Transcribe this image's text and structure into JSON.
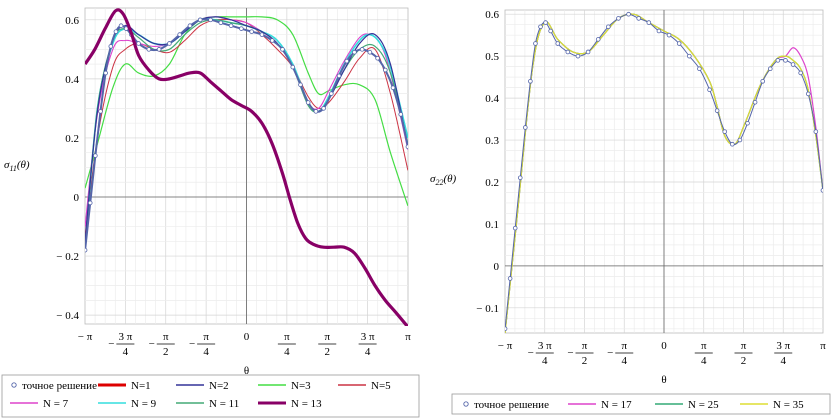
{
  "chart_data": [
    {
      "type": "line",
      "xlabel": "θ",
      "ylabel_main": "σ",
      "ylabel_sub": "11",
      "ylabel_arg": "(θ)",
      "xlim": [
        -3.14159,
        3.14159
      ],
      "ylim": [
        -0.43,
        0.64
      ],
      "grid": true,
      "x_ticks": [
        {
          "v": -3.14159,
          "label": "− π"
        },
        {
          "v": -2.35619,
          "num": "3 π",
          "den": "4",
          "sign": "−"
        },
        {
          "v": -1.5708,
          "num": "π",
          "den": "2",
          "sign": "−"
        },
        {
          "v": -0.7854,
          "num": "π",
          "den": "4",
          "sign": "−"
        },
        {
          "v": 0,
          "label": "0"
        },
        {
          "v": 0.7854,
          "num": "π",
          "den": "4",
          "sign": ""
        },
        {
          "v": 1.5708,
          "num": "π",
          "den": "2",
          "sign": ""
        },
        {
          "v": 2.35619,
          "num": "3 π",
          "den": "4",
          "sign": ""
        },
        {
          "v": 3.14159,
          "label": "π"
        }
      ],
      "y_ticks": [
        {
          "v": -0.4,
          "label": "− 0.4"
        },
        {
          "v": -0.2,
          "label": "− 0.2"
        },
        {
          "v": 0,
          "label": "0"
        },
        {
          "v": 0.2,
          "label": "0.2"
        },
        {
          "v": 0.4,
          "label": "0.4"
        },
        {
          "v": 0.6,
          "label": "0.6"
        }
      ],
      "series": [
        {
          "name": "N=3",
          "color": "#44dd44",
          "width": 1.2,
          "x": [
            -3.14,
            -2.9,
            -2.6,
            -2.36,
            -2.1,
            -1.8,
            -1.5,
            -1.2,
            -0.9,
            -0.6,
            -0.3,
            0,
            0.3,
            0.6,
            0.9,
            1.2,
            1.4,
            1.6,
            1.9,
            2.2,
            2.5,
            2.8,
            3.14
          ],
          "y": [
            0.03,
            0.18,
            0.37,
            0.45,
            0.42,
            0.41,
            0.45,
            0.55,
            0.6,
            0.61,
            0.61,
            0.61,
            0.61,
            0.6,
            0.55,
            0.42,
            0.35,
            0.36,
            0.38,
            0.38,
            0.33,
            0.15,
            -0.03
          ]
        },
        {
          "name": "N=5",
          "color": "#cc3344",
          "width": 1.0,
          "x": [
            -3.14,
            -2.9,
            -2.6,
            -2.36,
            -2.1,
            -1.8,
            -1.5,
            -1.2,
            -0.9,
            -0.6,
            -0.3,
            0,
            0.3,
            0.6,
            0.9,
            1.2,
            1.4,
            1.6,
            1.9,
            2.2,
            2.5,
            2.8,
            3.14
          ],
          "y": [
            -0.13,
            0.2,
            0.44,
            0.5,
            0.52,
            0.5,
            0.49,
            0.53,
            0.58,
            0.6,
            0.6,
            0.59,
            0.55,
            0.5,
            0.44,
            0.34,
            0.3,
            0.32,
            0.39,
            0.47,
            0.5,
            0.35,
            0.09
          ]
        },
        {
          "name": "N = 7",
          "color": "#dd44cc",
          "width": 1.1,
          "x": [
            -3.14,
            -2.9,
            -2.6,
            -2.36,
            -2.1,
            -1.8,
            -1.5,
            -1.2,
            -0.9,
            -0.6,
            -0.3,
            0,
            0.3,
            0.6,
            0.9,
            1.2,
            1.4,
            1.6,
            1.9,
            2.2,
            2.4,
            2.6,
            2.8,
            3.14
          ],
          "y": [
            -0.1,
            0.28,
            0.5,
            0.53,
            0.52,
            0.51,
            0.52,
            0.56,
            0.6,
            0.61,
            0.6,
            0.59,
            0.56,
            0.52,
            0.44,
            0.32,
            0.3,
            0.36,
            0.46,
            0.54,
            0.55,
            0.52,
            0.42,
            0.16
          ]
        },
        {
          "name": "N = 9",
          "color": "#33dddd",
          "width": 1.6,
          "x": [
            -3.14,
            -2.9,
            -2.6,
            -2.36,
            -2.1,
            -1.8,
            -1.5,
            -1.2,
            -0.9,
            -0.6,
            -0.3,
            0,
            0.3,
            0.6,
            0.9,
            1.2,
            1.4,
            1.6,
            1.9,
            2.2,
            2.4,
            2.6,
            2.8,
            3.14
          ],
          "y": [
            -0.17,
            0.3,
            0.52,
            0.57,
            0.55,
            0.52,
            0.52,
            0.56,
            0.6,
            0.6,
            0.59,
            0.58,
            0.56,
            0.53,
            0.45,
            0.32,
            0.29,
            0.34,
            0.45,
            0.53,
            0.55,
            0.52,
            0.44,
            0.2
          ]
        },
        {
          "name": "N = 11",
          "color": "#44aa77",
          "width": 1.2,
          "x": [
            -3.14,
            -2.9,
            -2.6,
            -2.36,
            -2.1,
            -1.8,
            -1.5,
            -1.2,
            -0.9,
            -0.6,
            -0.3,
            0,
            0.3,
            0.6,
            0.9,
            1.2,
            1.4,
            1.6,
            1.9,
            2.2,
            2.5,
            2.8,
            3.14
          ],
          "y": [
            -0.16,
            0.3,
            0.53,
            0.57,
            0.54,
            0.5,
            0.5,
            0.55,
            0.59,
            0.6,
            0.59,
            0.58,
            0.56,
            0.52,
            0.44,
            0.31,
            0.29,
            0.33,
            0.43,
            0.5,
            0.51,
            0.42,
            0.18
          ]
        },
        {
          "name": "N=2",
          "color": "#333399",
          "width": 1.2,
          "x": [
            -3.14,
            -2.9,
            -2.6,
            -2.36,
            -2.1,
            -1.8,
            -1.5,
            -1.2,
            -0.9,
            -0.6,
            -0.3,
            0,
            0.3,
            0.6,
            0.9,
            1.2,
            1.4,
            1.6,
            1.9,
            2.2,
            2.5,
            2.8,
            3.14
          ],
          "y": [
            -0.15,
            0.29,
            0.53,
            0.58,
            0.55,
            0.52,
            0.52,
            0.56,
            0.6,
            0.61,
            0.6,
            0.58,
            0.56,
            0.52,
            0.44,
            0.32,
            0.29,
            0.33,
            0.43,
            0.52,
            0.55,
            0.45,
            0.17
          ]
        },
        {
          "name": "N=1",
          "color": "#dd0000",
          "width": 2.6,
          "hidden": true,
          "x": [],
          "y": []
        },
        {
          "name": "точное решение",
          "color": "#5566aa",
          "width": 2.0,
          "markers": true,
          "x": [
            -3.14,
            -3.04,
            -2.94,
            -2.84,
            -2.74,
            -2.64,
            -2.54,
            -2.44,
            -2.34,
            -2.24,
            -2.1,
            -1.9,
            -1.7,
            -1.5,
            -1.3,
            -1.1,
            -0.9,
            -0.7,
            -0.5,
            -0.3,
            -0.1,
            0.1,
            0.3,
            0.5,
            0.7,
            0.9,
            1.05,
            1.2,
            1.35,
            1.5,
            1.65,
            1.8,
            1.95,
            2.1,
            2.25,
            2.4,
            2.55,
            2.7,
            2.85,
            3.0,
            3.14
          ],
          "y": [
            -0.18,
            -0.02,
            0.14,
            0.29,
            0.42,
            0.51,
            0.56,
            0.58,
            0.57,
            0.55,
            0.52,
            0.5,
            0.5,
            0.52,
            0.55,
            0.58,
            0.6,
            0.6,
            0.59,
            0.58,
            0.57,
            0.56,
            0.55,
            0.53,
            0.5,
            0.44,
            0.38,
            0.32,
            0.29,
            0.3,
            0.35,
            0.41,
            0.46,
            0.49,
            0.5,
            0.49,
            0.47,
            0.43,
            0.37,
            0.28,
            0.17
          ]
        },
        {
          "name": "N = 13",
          "color": "#880066",
          "width": 3.2,
          "x": [
            -3.14,
            -2.95,
            -2.75,
            -2.55,
            -2.4,
            -2.25,
            -2.1,
            -1.9,
            -1.7,
            -1.5,
            -1.3,
            -1.1,
            -0.9,
            -0.7,
            -0.5,
            -0.3,
            -0.1,
            0.1,
            0.3,
            0.5,
            0.7,
            0.85,
            1.0,
            1.15,
            1.3,
            1.5,
            1.7,
            1.9,
            2.1,
            2.3,
            2.5,
            2.7,
            2.9,
            3.14
          ],
          "y": [
            0.45,
            0.5,
            0.57,
            0.63,
            0.62,
            0.56,
            0.48,
            0.43,
            0.4,
            0.4,
            0.41,
            0.42,
            0.42,
            0.39,
            0.36,
            0.33,
            0.31,
            0.29,
            0.25,
            0.18,
            0.08,
            -0.01,
            -0.09,
            -0.14,
            -0.16,
            -0.17,
            -0.17,
            -0.17,
            -0.19,
            -0.24,
            -0.3,
            -0.35,
            -0.39,
            -0.44
          ]
        }
      ],
      "legend": {
        "position": "bottom",
        "rows": [
          [
            {
              "label": "точное решение",
              "series_color": "#5566aa",
              "kind": "marker"
            },
            {
              "label": "N=1",
              "series_color": "#dd0000",
              "kind": "line"
            },
            {
              "label": "N=2",
              "series_color": "#333399",
              "kind": "line"
            },
            {
              "label": "N=3",
              "series_color": "#44dd44",
              "kind": "line"
            },
            {
              "label": "N=5",
              "series_color": "#cc3344",
              "kind": "line"
            }
          ],
          [
            {
              "label": "N = 7",
              "series_color": "#dd44cc",
              "kind": "line"
            },
            {
              "label": "N = 9",
              "series_color": "#33dddd",
              "kind": "line"
            },
            {
              "label": "N = 11",
              "series_color": "#44aa77",
              "kind": "line"
            },
            {
              "label": "N = 13",
              "series_color": "#880066",
              "kind": "line"
            }
          ]
        ]
      }
    },
    {
      "type": "line",
      "xlabel": "θ",
      "ylabel_main": "σ",
      "ylabel_sub": "22",
      "ylabel_arg": "(θ)",
      "xlim": [
        -3.14159,
        3.14159
      ],
      "ylim": [
        -0.16,
        0.61
      ],
      "grid": true,
      "x_ticks": [
        {
          "v": -3.14159,
          "label": "− π"
        },
        {
          "v": -2.35619,
          "num": "3 π",
          "den": "4",
          "sign": "−"
        },
        {
          "v": -1.5708,
          "num": "π",
          "den": "2",
          "sign": "−"
        },
        {
          "v": -0.7854,
          "num": "π",
          "den": "4",
          "sign": "−"
        },
        {
          "v": 0,
          "label": "0"
        },
        {
          "v": 0.7854,
          "num": "π",
          "den": "4",
          "sign": ""
        },
        {
          "v": 1.5708,
          "num": "π",
          "den": "2",
          "sign": ""
        },
        {
          "v": 2.35619,
          "num": "3 π",
          "den": "4",
          "sign": ""
        },
        {
          "v": 3.14159,
          "label": "π"
        }
      ],
      "y_ticks": [
        {
          "v": -0.1,
          "label": "− 0.1"
        },
        {
          "v": 0,
          "label": "0"
        },
        {
          "v": 0.1,
          "label": "0.1"
        },
        {
          "v": 0.2,
          "label": "0.2"
        },
        {
          "v": 0.3,
          "label": "0.3"
        },
        {
          "v": 0.4,
          "label": "0.4"
        },
        {
          "v": 0.5,
          "label": "0.5"
        },
        {
          "v": 0.6,
          "label": "0.6"
        }
      ],
      "series": [
        {
          "name": "N = 17",
          "color": "#dd44cc",
          "width": 1.2,
          "x": [
            -3.14,
            -2.9,
            -2.6,
            -2.36,
            -2.1,
            -1.8,
            -1.5,
            -1.2,
            -0.9,
            -0.6,
            -0.3,
            0,
            0.3,
            0.6,
            0.9,
            1.05,
            1.2,
            1.4,
            1.6,
            1.9,
            2.2,
            2.4,
            2.55,
            2.7,
            2.85,
            3.0,
            3.14
          ],
          "y": [
            -0.16,
            0.12,
            0.47,
            0.58,
            0.54,
            0.51,
            0.51,
            0.55,
            0.59,
            0.6,
            0.58,
            0.56,
            0.54,
            0.5,
            0.44,
            0.38,
            0.31,
            0.29,
            0.34,
            0.43,
            0.49,
            0.5,
            0.52,
            0.5,
            0.45,
            0.33,
            0.18
          ]
        },
        {
          "name": "N = 25",
          "color": "#33aa77",
          "width": 1.2,
          "x": [
            -3.14,
            -2.9,
            -2.6,
            -2.36,
            -2.1,
            -1.8,
            -1.5,
            -1.2,
            -0.9,
            -0.6,
            -0.3,
            0,
            0.3,
            0.6,
            0.9,
            1.05,
            1.2,
            1.4,
            1.6,
            1.9,
            2.2,
            2.4,
            2.55,
            2.7,
            2.85,
            3.0,
            3.14
          ],
          "y": [
            -0.16,
            0.12,
            0.47,
            0.58,
            0.54,
            0.51,
            0.51,
            0.55,
            0.59,
            0.6,
            0.58,
            0.56,
            0.54,
            0.5,
            0.44,
            0.38,
            0.31,
            0.29,
            0.34,
            0.43,
            0.49,
            0.5,
            0.49,
            0.47,
            0.42,
            0.31,
            0.18
          ]
        },
        {
          "name": "N = 35",
          "color": "#dddd33",
          "width": 1.2,
          "x": [
            -3.14,
            -2.9,
            -2.6,
            -2.36,
            -2.1,
            -1.8,
            -1.5,
            -1.2,
            -0.9,
            -0.6,
            -0.3,
            0,
            0.3,
            0.6,
            0.9,
            1.05,
            1.2,
            1.4,
            1.6,
            1.9,
            2.2,
            2.4,
            2.55,
            2.7,
            2.85,
            3.0,
            3.14
          ],
          "y": [
            -0.16,
            0.12,
            0.47,
            0.58,
            0.54,
            0.51,
            0.51,
            0.55,
            0.59,
            0.6,
            0.58,
            0.56,
            0.54,
            0.5,
            0.44,
            0.38,
            0.31,
            0.29,
            0.34,
            0.43,
            0.49,
            0.5,
            0.49,
            0.47,
            0.42,
            0.31,
            0.18
          ]
        },
        {
          "name": "точное решение",
          "color": "#5566aa",
          "width": 1.0,
          "markers": true,
          "x": [
            -3.14,
            -3.04,
            -2.94,
            -2.84,
            -2.74,
            -2.64,
            -2.54,
            -2.44,
            -2.34,
            -2.24,
            -2.1,
            -1.9,
            -1.7,
            -1.5,
            -1.3,
            -1.1,
            -0.9,
            -0.7,
            -0.5,
            -0.3,
            -0.1,
            0.1,
            0.3,
            0.5,
            0.7,
            0.9,
            1.05,
            1.2,
            1.35,
            1.5,
            1.65,
            1.8,
            1.95,
            2.1,
            2.25,
            2.4,
            2.55,
            2.7,
            2.85,
            3.0,
            3.14
          ],
          "y": [
            -0.15,
            -0.03,
            0.09,
            0.21,
            0.33,
            0.44,
            0.53,
            0.57,
            0.58,
            0.56,
            0.53,
            0.51,
            0.5,
            0.51,
            0.54,
            0.57,
            0.59,
            0.6,
            0.59,
            0.58,
            0.56,
            0.55,
            0.53,
            0.5,
            0.47,
            0.42,
            0.37,
            0.32,
            0.29,
            0.3,
            0.34,
            0.39,
            0.44,
            0.47,
            0.49,
            0.49,
            0.48,
            0.46,
            0.41,
            0.32,
            0.18
          ]
        }
      ],
      "legend": {
        "position": "bottom",
        "rows": [
          [
            {
              "label": "точное решение",
              "series_color": "#5566aa",
              "kind": "marker"
            },
            {
              "label": "N = 17",
              "series_color": "#dd44cc",
              "kind": "line"
            },
            {
              "label": "N = 25",
              "series_color": "#33aa77",
              "kind": "line"
            },
            {
              "label": "N = 35",
              "series_color": "#dddd33",
              "kind": "line"
            }
          ]
        ]
      }
    }
  ]
}
